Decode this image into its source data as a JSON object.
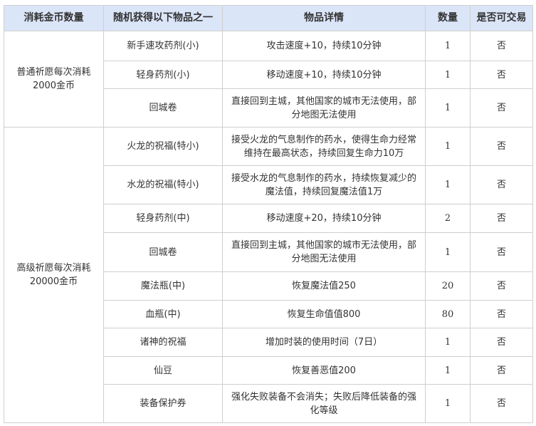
{
  "table": {
    "headers": [
      "消耗金币数量",
      "随机获得以下物品之一",
      "物品详情",
      "数量",
      "是否可交易"
    ],
    "groups": [
      {
        "cost": "普通祈愿每次消耗2000金币",
        "rows": [
          {
            "item": "新手速攻药剂(小)",
            "detail": "攻击速度+10，持续10分钟",
            "qty": "1",
            "tradable": "否"
          },
          {
            "item": "轻身药剂(小)",
            "detail": "移动速度+10，持续10分钟",
            "qty": "1",
            "tradable": "否"
          },
          {
            "item": "回城卷",
            "detail": "直接回到主城，其他国家的城市无法使用，部分地图无法使用",
            "qty": "1",
            "tradable": "否"
          }
        ]
      },
      {
        "cost": "高级祈愿每次消耗20000金币",
        "rows": [
          {
            "item": "火龙的祝福(特小)",
            "detail": "接受火龙的气息制作的药水，使得生命力经常维持在最高状态，持续回复生命力10万",
            "qty": "1",
            "tradable": "否"
          },
          {
            "item": "水龙的祝福(特小)",
            "detail": "接受水龙的气息制作的药水，持续恢复减少的魔法值，持续回复魔法值1万",
            "qty": "1",
            "tradable": "否"
          },
          {
            "item": "轻身药剂(中)",
            "detail": "移动速度+20，持续10分钟",
            "qty": "2",
            "tradable": "否"
          },
          {
            "item": "回城卷",
            "detail": "直接回到主城，其他国家的城市无法使用，部分地图无法使用",
            "qty": "1",
            "tradable": "否"
          },
          {
            "item": "魔法瓶(中)",
            "detail": "恢复魔法值250",
            "qty": "20",
            "tradable": "否"
          },
          {
            "item": "血瓶(中)",
            "detail": "恢复生命值值800",
            "qty": "80",
            "tradable": "否"
          },
          {
            "item": "诸神的祝福",
            "detail": "增加时装的使用时间（7日）",
            "qty": "1",
            "tradable": "否"
          },
          {
            "item": "仙豆",
            "detail": "恢复善恶值200",
            "qty": "1",
            "tradable": "否"
          },
          {
            "item": "装备保护券",
            "detail": "强化失败装备不会消失；失败后降低装备的强化等级",
            "qty": "1",
            "tradable": "否"
          }
        ]
      }
    ]
  }
}
